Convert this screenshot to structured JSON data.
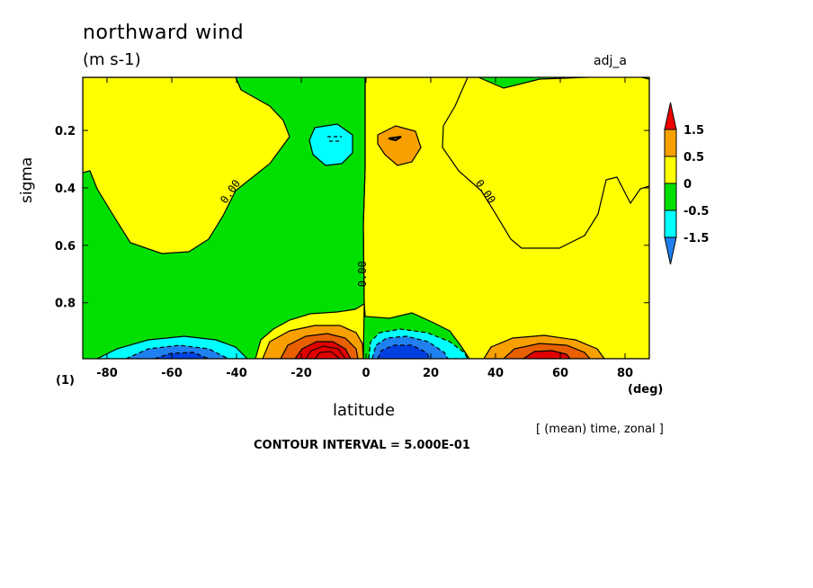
{
  "chart_data": {
    "type": "contour",
    "title": "northward wind",
    "units": "(m s-1)",
    "run_name": "adj_a",
    "xlabel": "latitude",
    "x_unit_label": "(deg)",
    "ylabel": "sigma",
    "level_note": "(1)",
    "aux_note": "[ (mean) time, zonal ]",
    "interval_label": "CONTOUR INTERVAL = 5.000E-01",
    "xlim": [
      -87.5,
      87.5
    ],
    "ylim": [
      0.015,
      0.995
    ],
    "y_inverted": true,
    "x_ticks": [
      -80,
      -60,
      -40,
      -20,
      0,
      20,
      40,
      60,
      80
    ],
    "x_tick_labels": [
      "-80",
      "-60",
      "-40",
      "-20",
      "0",
      "20",
      "40",
      "60",
      "80"
    ],
    "y_ticks": [
      0.2,
      0.4,
      0.6,
      0.8
    ],
    "y_tick_labels": [
      "0.2",
      "0.4",
      "0.6",
      "0.8"
    ],
    "contour_interval": 0.5,
    "contour_line_labels": [
      {
        "text": "0.00",
        "x": -41,
        "y": 0.42
      },
      {
        "text": "0.00",
        "x": 0,
        "y": 0.7
      },
      {
        "text": "0.00",
        "x": 36,
        "y": 0.42
      }
    ],
    "legend": {
      "placement": "right",
      "levels": [
        "1.5",
        "0.5",
        "0",
        "-0.5",
        "-1.5"
      ],
      "colors": [
        "#f00000",
        "#f8a000",
        "#ffff00",
        "#00e000",
        "#00ffff",
        "#2080f0"
      ]
    },
    "colors": {
      "positive_0_to_0.5": "#ffff00",
      "positive_0.5_to_1": "#f8a000",
      "positive_1_to_1.5": "#e86000",
      "positive_above_1.5": "#e00000",
      "negative_0_to_-0.5": "#00e000",
      "negative_-0.5_to_-1": "#00ffff",
      "negative_-1_to_-1.5": "#2080f0",
      "negative_below_-1.5": "#0040e0"
    },
    "features": [
      {
        "sign": "positive",
        "x_range": [
          -35,
          -3
        ],
        "y_range": [
          0.87,
          0.995
        ],
        "peak": 2.5,
        "peak_at": [
          -12,
          0.985
        ]
      },
      {
        "sign": "negative",
        "x_range": [
          -85,
          -38
        ],
        "y_range": [
          0.93,
          0.995
        ],
        "peak": -1.5,
        "peak_at": [
          -55,
          0.99
        ]
      },
      {
        "sign": "negative",
        "x_range": [
          3,
          33
        ],
        "y_range": [
          0.9,
          0.995
        ],
        "peak": -2.0,
        "peak_at": [
          12,
          0.985
        ]
      },
      {
        "sign": "positive",
        "x_range": [
          37,
          70
        ],
        "y_range": [
          0.93,
          0.995
        ],
        "peak": 1.5,
        "peak_at": [
          57,
          0.99
        ]
      },
      {
        "sign": "negative",
        "x_range": [
          -16,
          -3
        ],
        "y_range": [
          0.19,
          0.31
        ],
        "peak": -1.0,
        "peak_at": [
          -10,
          0.225
        ]
      },
      {
        "sign": "positive",
        "x_range": [
          5,
          18
        ],
        "y_range": [
          0.19,
          0.3
        ],
        "peak": 1.0,
        "peak_at": [
          13,
          0.225
        ]
      }
    ]
  }
}
